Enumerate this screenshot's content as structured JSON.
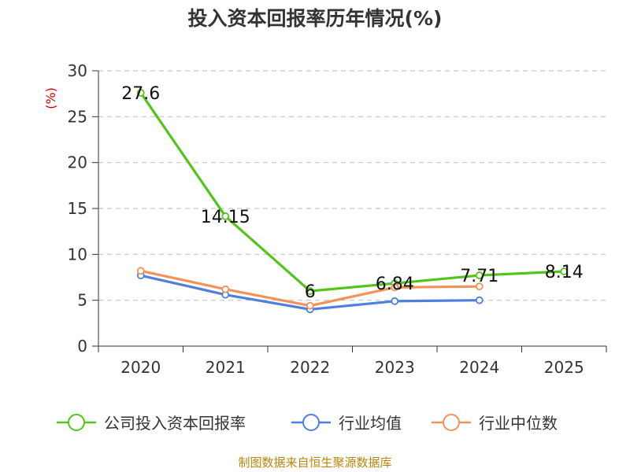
{
  "chart_data": {
    "type": "line",
    "title": "投入资本回报率历年情况(%)",
    "ylabel": "(%)",
    "categories": [
      "2020",
      "2021",
      "2022",
      "2023",
      "2024",
      "2025"
    ],
    "ylim": [
      0,
      30
    ],
    "yticks": [
      0,
      5,
      10,
      15,
      20,
      25,
      30
    ],
    "grid": true,
    "legend_position": "bottom",
    "series": [
      {
        "name": "公司投入资本回报率",
        "color": "#52c41a",
        "values": [
          27.6,
          14.15,
          6,
          6.84,
          7.71,
          8.14
        ],
        "labels": [
          "27.6",
          "14.15",
          "6",
          "6.84",
          "7.71",
          "8.14"
        ]
      },
      {
        "name": "行业均值",
        "color": "#4f7fdd",
        "values": [
          7.7,
          5.6,
          4.0,
          4.9,
          5.0,
          null
        ]
      },
      {
        "name": "行业中位数",
        "color": "#f4915a",
        "values": [
          8.2,
          6.2,
          4.4,
          6.4,
          6.5,
          null
        ]
      }
    ]
  },
  "source": "制图数据来自恒生聚源数据库"
}
